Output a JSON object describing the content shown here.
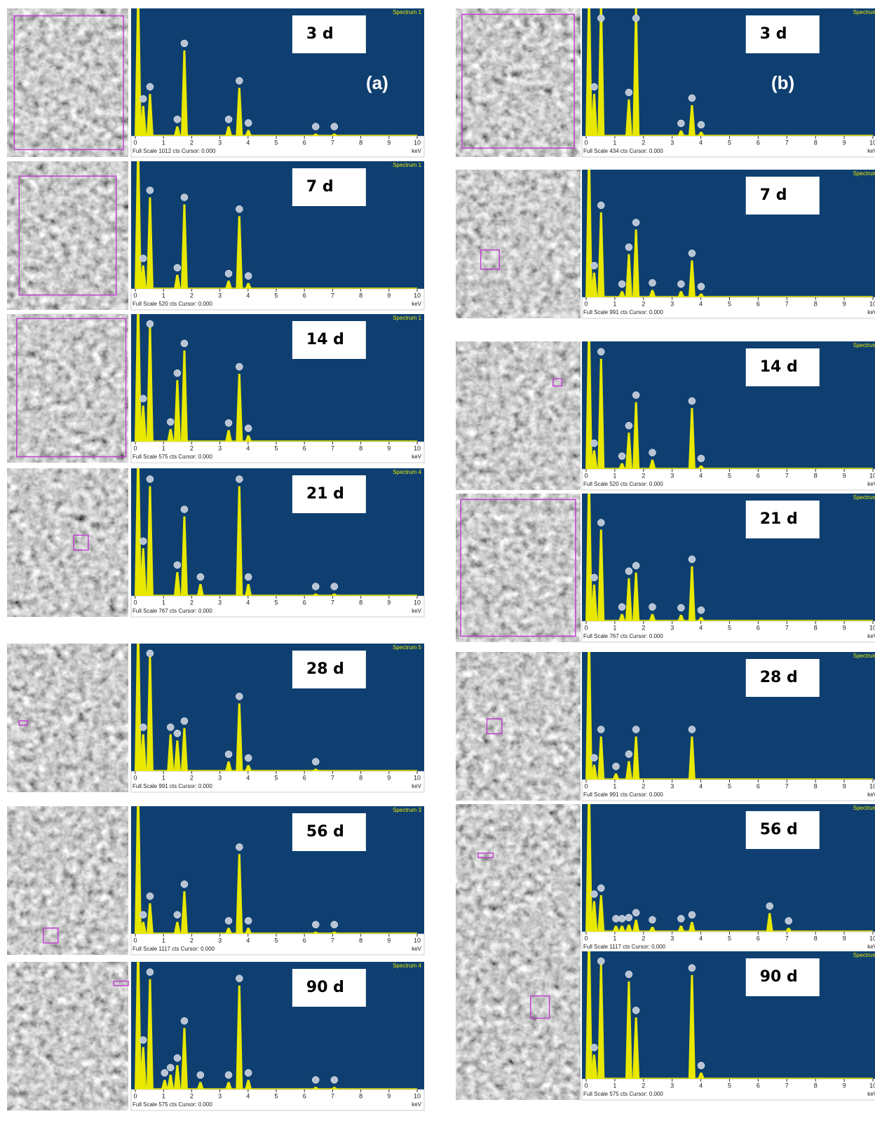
{
  "figure": {
    "panels": [
      "(a)",
      "(b)"
    ]
  },
  "chart_data": [
    {
      "type": "spectrum",
      "label": "3 d",
      "spectrum": "Spectrum 1",
      "footer": "Full Scale 1012 cts Cursor: 0.000",
      "x_unit": "keV",
      "xlim": [
        0,
        10
      ],
      "xticks": [
        0,
        1,
        2,
        3,
        4,
        5,
        6,
        7,
        8,
        9,
        10
      ],
      "ylim": [
        0,
        1012
      ],
      "color": "#e8e800",
      "x": [
        0.1,
        0.28,
        0.52,
        1.49,
        1.74,
        3.31,
        3.69,
        4.01,
        6.4,
        7.06
      ],
      "values": [
        1200,
        250,
        350,
        80,
        710,
        80,
        400,
        50,
        20,
        20
      ]
    },
    {
      "type": "spectrum",
      "label": "7 d",
      "spectrum": "Spectrum 1",
      "footer": "Full Scale 520 cts Cursor: 0.000",
      "x_unit": "keV",
      "xlim": [
        0,
        10
      ],
      "xticks": [
        0,
        1,
        2,
        3,
        4,
        5,
        6,
        7,
        8,
        9,
        10
      ],
      "ylim": [
        0,
        520
      ],
      "color": "#e8e800",
      "x": [
        0.1,
        0.28,
        0.52,
        1.49,
        1.74,
        3.31,
        3.69,
        4.01
      ],
      "values": [
        620,
        100,
        390,
        60,
        360,
        35,
        310,
        25
      ]
    },
    {
      "type": "spectrum",
      "label": "14 d",
      "spectrum": "Spectrum 1",
      "footer": "Full Scale 575 cts Cursor: 0.000",
      "x_unit": "keV",
      "xlim": [
        0,
        10
      ],
      "xticks": [
        0,
        1,
        2,
        3,
        4,
        5,
        6,
        7,
        8,
        9,
        10
      ],
      "ylim": [
        0,
        575
      ],
      "color": "#e8e800",
      "x": [
        0.1,
        0.28,
        0.52,
        1.25,
        1.49,
        1.74,
        3.31,
        3.69,
        4.01
      ],
      "values": [
        690,
        170,
        550,
        60,
        290,
        430,
        55,
        320,
        30
      ]
    },
    {
      "type": "spectrum",
      "label": "21 d",
      "spectrum": "Spectrum 4",
      "footer": "Full Scale 767 cts Cursor: 0.000",
      "x_unit": "keV",
      "xlim": [
        0,
        10
      ],
      "xticks": [
        0,
        1,
        2,
        3,
        4,
        5,
        6,
        7,
        8,
        9,
        10
      ],
      "ylim": [
        0,
        767
      ],
      "color": "#e8e800",
      "x": [
        0.1,
        0.28,
        0.52,
        1.49,
        1.74,
        2.31,
        3.69,
        4.01,
        6.4,
        7.06
      ],
      "values": [
        920,
        300,
        690,
        150,
        500,
        75,
        690,
        75,
        15,
        15
      ]
    },
    {
      "type": "spectrum",
      "label": "28 d",
      "spectrum": "Spectrum 5",
      "footer": "Full Scale 991 cts Cursor: 0.000",
      "x_unit": "keV",
      "xlim": [
        0,
        10
      ],
      "xticks": [
        0,
        1,
        2,
        3,
        4,
        5,
        6,
        7,
        8,
        9,
        10
      ],
      "ylim": [
        0,
        991
      ],
      "color": "#e8e800",
      "x": [
        0.1,
        0.28,
        0.52,
        1.25,
        1.49,
        1.74,
        3.31,
        3.69,
        4.01,
        6.4
      ],
      "values": [
        1190,
        300,
        940,
        300,
        250,
        350,
        80,
        550,
        50,
        20
      ]
    },
    {
      "type": "spectrum",
      "label": "56 d",
      "spectrum": "Spectrum 3",
      "footer": "Full Scale 1117 cts Cursor: 0.000",
      "x_unit": "keV",
      "xlim": [
        0,
        10
      ],
      "xticks": [
        0,
        1,
        2,
        3,
        4,
        5,
        6,
        7,
        8,
        9,
        10
      ],
      "ylim": [
        0,
        1117
      ],
      "color": "#e8e800",
      "x": [
        0.1,
        0.28,
        0.52,
        1.49,
        1.74,
        3.31,
        3.69,
        4.01,
        6.4,
        7.06
      ],
      "values": [
        1340,
        110,
        280,
        110,
        390,
        55,
        730,
        55,
        20,
        20
      ]
    },
    {
      "type": "spectrum",
      "label": "90 d",
      "spectrum": "Spectrum 4",
      "footer": "Full Scale 575 cts Cursor: 0.000",
      "x_unit": "keV",
      "xlim": [
        0,
        10
      ],
      "xticks": [
        0,
        1,
        2,
        3,
        4,
        5,
        6,
        7,
        8,
        9,
        10
      ],
      "ylim": [
        0,
        575
      ],
      "color": "#e8e800",
      "x": [
        0.1,
        0.28,
        0.52,
        1.04,
        1.25,
        1.49,
        1.74,
        2.31,
        3.31,
        3.69,
        4.01,
        6.4,
        7.06
      ],
      "values": [
        690,
        200,
        520,
        45,
        70,
        115,
        290,
        35,
        35,
        490,
        45,
        12,
        12
      ]
    },
    {
      "type": "spectrum",
      "label": "3 d",
      "spectrum": "Spectrum",
      "footer": "Full Scale 434 cts Cursor: 0.000",
      "x_unit": "keV",
      "xlim": [
        0,
        10
      ],
      "xticks": [
        0,
        1,
        2,
        3,
        4,
        5,
        6,
        7,
        8,
        9,
        10
      ],
      "ylim": [
        0,
        434
      ],
      "color": "#e8e800",
      "x": [
        0.1,
        0.28,
        0.52,
        1.49,
        1.74,
        3.31,
        3.69,
        4.01
      ],
      "values": [
        520,
        150,
        480,
        130,
        455,
        20,
        110,
        15
      ]
    },
    {
      "type": "spectrum",
      "label": "7 d",
      "spectrum": "Spectrum",
      "footer": "Full Scale 991 cts Cursor: 0.000",
      "x_unit": "keV",
      "xlim": [
        0,
        10
      ],
      "xticks": [
        0,
        1,
        2,
        3,
        4,
        5,
        6,
        7,
        8,
        9,
        10
      ],
      "ylim": [
        0,
        991
      ],
      "color": "#e8e800",
      "x": [
        0.1,
        0.28,
        0.52,
        1.25,
        1.49,
        1.74,
        2.31,
        3.31,
        3.69,
        4.01
      ],
      "values": [
        1190,
        200,
        690,
        50,
        350,
        550,
        60,
        50,
        300,
        30
      ]
    },
    {
      "type": "spectrum",
      "label": "14 d",
      "spectrum": "Spectrum",
      "footer": "Full Scale 520 cts Cursor: 0.000",
      "x_unit": "keV",
      "xlim": [
        0,
        10
      ],
      "xticks": [
        0,
        1,
        2,
        3,
        4,
        5,
        6,
        7,
        8,
        9,
        10
      ],
      "ylim": [
        0,
        520
      ],
      "color": "#e8e800",
      "x": [
        0.1,
        0.28,
        0.52,
        1.25,
        1.49,
        1.74,
        2.31,
        3.69,
        4.01
      ],
      "values": [
        620,
        80,
        470,
        25,
        155,
        285,
        40,
        260,
        15
      ]
    },
    {
      "type": "spectrum",
      "label": "21 d",
      "spectrum": "Spectrum",
      "footer": "Full Scale 767 cts Cursor: 0.000",
      "x_unit": "keV",
      "xlim": [
        0,
        10
      ],
      "xticks": [
        0,
        1,
        2,
        3,
        4,
        5,
        6,
        7,
        8,
        9,
        10
      ],
      "ylim": [
        0,
        767
      ],
      "color": "#e8e800",
      "x": [
        0.1,
        0.28,
        0.52,
        1.25,
        1.49,
        1.74,
        2.31,
        3.31,
        3.69,
        4.01
      ],
      "values": [
        920,
        230,
        575,
        45,
        270,
        305,
        45,
        40,
        345,
        25
      ]
    },
    {
      "type": "spectrum",
      "label": "28 d",
      "spectrum": "Spectrum",
      "footer": "Full Scale 991 cts Cursor: 0.000",
      "x_unit": "keV",
      "xlim": [
        0,
        10
      ],
      "xticks": [
        0,
        1,
        2,
        3,
        4,
        5,
        6,
        7,
        8,
        9,
        10
      ],
      "ylim": [
        0,
        991
      ],
      "color": "#e8e800",
      "x": [
        0.1,
        0.28,
        0.52,
        1.04,
        1.49,
        1.74,
        3.69
      ],
      "values": [
        1190,
        120,
        350,
        50,
        150,
        350,
        350
      ]
    },
    {
      "type": "spectrum",
      "label": "56 d",
      "spectrum": "Spectrum",
      "footer": "Full Scale 1117 cts Cursor: 0.000",
      "x_unit": "keV",
      "xlim": [
        0,
        10
      ],
      "xticks": [
        0,
        1,
        2,
        3,
        4,
        5,
        6,
        7,
        8,
        9,
        10
      ],
      "ylim": [
        0,
        1117
      ],
      "color": "#e8e800",
      "x": [
        0.1,
        0.28,
        0.52,
        1.04,
        1.25,
        1.49,
        1.74,
        2.31,
        3.31,
        3.69,
        6.4,
        7.06
      ],
      "values": [
        1340,
        280,
        335,
        55,
        55,
        65,
        110,
        45,
        55,
        90,
        170,
        35
      ]
    },
    {
      "type": "spectrum",
      "label": "90 d",
      "spectrum": "Spectrum",
      "footer": "Full Scale 575 cts Cursor: 0.000",
      "x_unit": "keV",
      "xlim": [
        0,
        10
      ],
      "xticks": [
        0,
        1,
        2,
        3,
        4,
        5,
        6,
        7,
        8,
        9,
        10
      ],
      "ylim": [
        0,
        575
      ],
      "color": "#e8e800",
      "x": [
        0.1,
        0.28,
        0.52,
        1.49,
        1.74,
        3.69,
        4.01
      ],
      "values": [
        690,
        115,
        545,
        460,
        290,
        490,
        30
      ]
    }
  ]
}
